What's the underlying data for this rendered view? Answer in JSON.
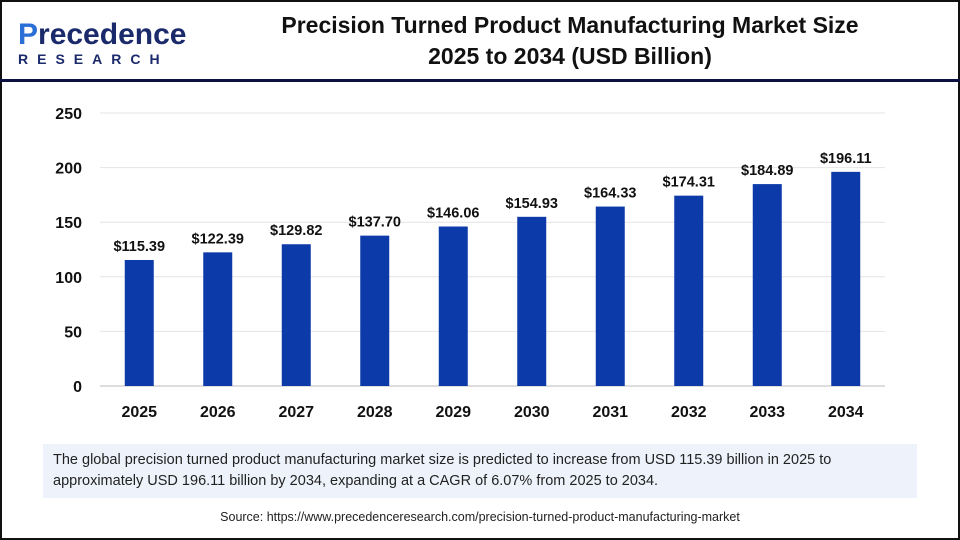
{
  "header": {
    "logo_text": "Precedence RESEARCH",
    "title_line1": "Precision Turned Product Manufacturing Market Size",
    "title_line2": "2025 to 2034 (USD Billion)"
  },
  "chart_data": {
    "type": "bar",
    "title": "Precision Turned Product Manufacturing Market Size 2025 to 2034 (USD Billion)",
    "categories": [
      "2025",
      "2026",
      "2027",
      "2028",
      "2029",
      "2030",
      "2031",
      "2032",
      "2033",
      "2034"
    ],
    "values": [
      115.39,
      122.39,
      129.82,
      137.7,
      146.06,
      154.93,
      164.33,
      174.31,
      184.89,
      196.11
    ],
    "data_labels": [
      "$115.39",
      "$122.39",
      "$129.82",
      "$137.70",
      "$146.06",
      "$154.93",
      "$164.33",
      "$174.31",
      "$184.89",
      "$196.11"
    ],
    "yticks": [
      0,
      50,
      100,
      150,
      200,
      250
    ],
    "ylim": [
      0,
      250
    ],
    "grid": true,
    "bar_color": "#0d3aa9",
    "xlabel": "",
    "ylabel": ""
  },
  "note": "The global precision turned product manufacturing market  size is predicted to increase from USD 115.39 billion in 2025 to approximately USD 196.11 billion by 2034, expanding at a CAGR of 6.07% from 2025 to 2034.",
  "source": "Source: https://www.precedenceresearch.com/precision-turned-product-manufacturing-market"
}
